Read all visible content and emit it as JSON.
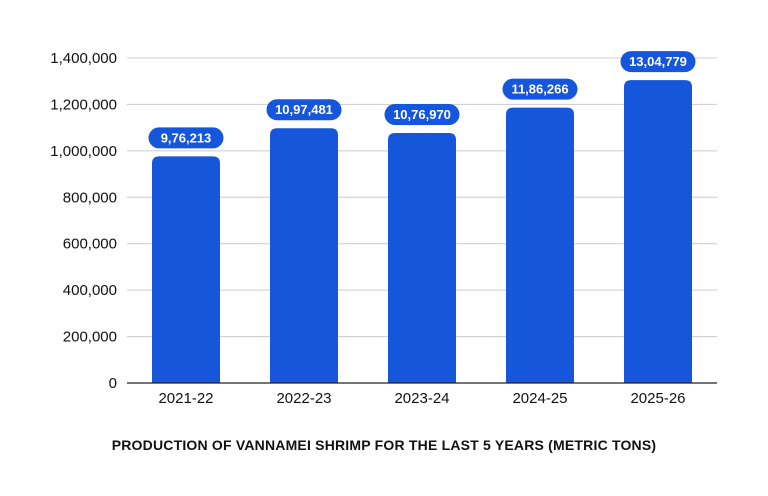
{
  "chart_data": {
    "type": "bar",
    "title": "PRODUCTION OF VANNAMEI SHRIMP FOR THE LAST 5 YEARS (METRIC TONS)",
    "xlabel": "",
    "ylabel": "",
    "categories": [
      "2021-22",
      "2022-23",
      "2023-24",
      "2024-25",
      "2025-26"
    ],
    "values": [
      976213,
      1097481,
      1076970,
      1186266,
      1304779
    ],
    "data_labels": [
      "9,76,213",
      "10,97,481",
      "10,76,970",
      "11,86,266",
      "13,04,779"
    ],
    "ylim": [
      0,
      1400000
    ],
    "yticks": [
      0,
      200000,
      400000,
      600000,
      800000,
      1000000,
      1200000,
      1400000
    ],
    "ytick_labels": [
      "0",
      "200,000",
      "400,000",
      "600,000",
      "800,000",
      "1,000,000",
      "1,200,000",
      "1,400,000"
    ],
    "grid": true,
    "legend": "none",
    "colors": {
      "bar": "#1656db",
      "label_bg": "#1656db",
      "label_text": "#ffffff",
      "grid": "#cccccc",
      "axis": "#222222",
      "text": "#111111"
    }
  }
}
